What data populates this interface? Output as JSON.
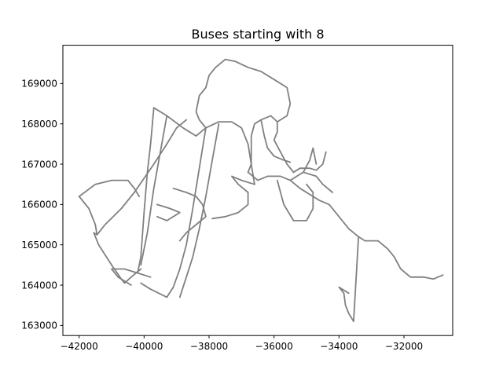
{
  "chart_data": {
    "type": "line",
    "title": "Buses starting with 8",
    "xlabel": "",
    "ylabel": "",
    "xlim": [
      -42500,
      -30500
    ],
    "ylim": [
      162750,
      169950
    ],
    "xticks": [
      -42000,
      -40000,
      -38000,
      -36000,
      -34000,
      -32000
    ],
    "yticks": [
      163000,
      164000,
      165000,
      166000,
      167000,
      168000,
      169000
    ],
    "xtick_labels": [
      "−42000",
      "−40000",
      "−38000",
      "−36000",
      "−34000",
      "−32000"
    ],
    "ytick_labels": [
      "163000",
      "164000",
      "165000",
      "166000",
      "167000",
      "168000",
      "169000"
    ],
    "grid": false,
    "legend": "none",
    "colors": {
      "route": "#808080",
      "axes": "#000000"
    },
    "series": [
      {
        "values": [
          [
            -42000,
            166200
          ],
          [
            -41500,
            166500
          ],
          [
            -41000,
            166600
          ],
          [
            -40500,
            166600
          ],
          [
            -40300,
            166400
          ],
          [
            -40150,
            166200
          ]
        ]
      },
      {
        "values": [
          [
            -42000,
            166200
          ],
          [
            -41700,
            165900
          ],
          [
            -41500,
            165500
          ],
          [
            -41450,
            165250
          ],
          [
            -41550,
            165300
          ],
          [
            -41400,
            165000
          ],
          [
            -41000,
            164500
          ],
          [
            -40700,
            164150
          ],
          [
            -40600,
            164050
          ],
          [
            -40400,
            164200
          ],
          [
            -40100,
            164400
          ]
        ]
      },
      {
        "values": [
          [
            -41450,
            165250
          ],
          [
            -41200,
            165500
          ],
          [
            -40700,
            165900
          ],
          [
            -40300,
            166300
          ],
          [
            -40000,
            166650
          ],
          [
            -39700,
            167000
          ],
          [
            -39300,
            167500
          ],
          [
            -39000,
            167900
          ],
          [
            -38700,
            168100
          ]
        ]
      },
      {
        "values": [
          [
            -39700,
            168400
          ],
          [
            -39300,
            168200
          ],
          [
            -38800,
            167900
          ],
          [
            -38400,
            167700
          ],
          [
            -38100,
            167900
          ],
          [
            -37700,
            168050
          ],
          [
            -37300,
            168050
          ],
          [
            -37000,
            167900
          ],
          [
            -36800,
            167500
          ],
          [
            -36700,
            167000
          ],
          [
            -36800,
            166800
          ]
        ]
      },
      {
        "values": [
          [
            -39700,
            168400
          ],
          [
            -39800,
            167500
          ],
          [
            -39900,
            166800
          ],
          [
            -40000,
            165800
          ],
          [
            -40100,
            164700
          ],
          [
            -40200,
            164300
          ]
        ]
      },
      {
        "values": [
          [
            -39300,
            168200
          ],
          [
            -39500,
            167300
          ],
          [
            -39700,
            166400
          ],
          [
            -39900,
            165300
          ],
          [
            -40100,
            164500
          ]
        ]
      },
      {
        "values": [
          [
            -38100,
            167900
          ],
          [
            -38300,
            166900
          ],
          [
            -38500,
            165900
          ],
          [
            -38700,
            165000
          ],
          [
            -38900,
            164400
          ],
          [
            -39100,
            163950
          ],
          [
            -39300,
            163700
          ],
          [
            -39800,
            163900
          ],
          [
            -40100,
            164050
          ]
        ]
      },
      {
        "values": [
          [
            -37700,
            168000
          ],
          [
            -37900,
            167100
          ],
          [
            -38100,
            166200
          ],
          [
            -38300,
            165400
          ],
          [
            -38500,
            164700
          ],
          [
            -38700,
            164200
          ],
          [
            -38900,
            163700
          ]
        ]
      },
      {
        "values": [
          [
            -39600,
            166000
          ],
          [
            -39200,
            165900
          ],
          [
            -38900,
            165800
          ],
          [
            -39300,
            165600
          ],
          [
            -39600,
            165700
          ]
        ]
      },
      {
        "values": [
          [
            -39100,
            166400
          ],
          [
            -38700,
            166300
          ],
          [
            -38400,
            166200
          ],
          [
            -38200,
            166000
          ],
          [
            -38100,
            165700
          ],
          [
            -38400,
            165500
          ],
          [
            -38700,
            165300
          ],
          [
            -38900,
            165100
          ]
        ]
      },
      {
        "values": [
          [
            -40400,
            164000
          ],
          [
            -40800,
            164200
          ],
          [
            -41000,
            164400
          ],
          [
            -40600,
            164400
          ],
          [
            -40200,
            164300
          ],
          [
            -39800,
            164200
          ]
        ]
      },
      {
        "values": [
          [
            -37900,
            165650
          ],
          [
            -37500,
            165700
          ],
          [
            -37100,
            165800
          ],
          [
            -36800,
            166000
          ],
          [
            -36800,
            166300
          ],
          [
            -37100,
            166500
          ],
          [
            -37300,
            166700
          ],
          [
            -37000,
            166600
          ],
          [
            -36600,
            166500
          ]
        ]
      },
      {
        "values": [
          [
            -36600,
            166500
          ],
          [
            -36700,
            167000
          ],
          [
            -36700,
            167700
          ],
          [
            -36600,
            168000
          ],
          [
            -36400,
            168100
          ],
          [
            -36100,
            168200
          ],
          [
            -35900,
            168050
          ],
          [
            -35900,
            167800
          ],
          [
            -36000,
            167600
          ],
          [
            -35800,
            167300
          ],
          [
            -35600,
            167000
          ],
          [
            -35400,
            166800
          ]
        ]
      },
      {
        "values": [
          [
            -35900,
            168050
          ],
          [
            -35600,
            168200
          ],
          [
            -35500,
            168500
          ],
          [
            -35600,
            168900
          ],
          [
            -36000,
            169100
          ],
          [
            -36400,
            169300
          ],
          [
            -36800,
            169400
          ],
          [
            -37200,
            169550
          ],
          [
            -37500,
            169600
          ],
          [
            -37800,
            169400
          ],
          [
            -38000,
            169200
          ],
          [
            -38100,
            168900
          ]
        ]
      },
      {
        "values": [
          [
            -38100,
            168900
          ],
          [
            -38300,
            168700
          ],
          [
            -38400,
            168300
          ],
          [
            -38300,
            168100
          ],
          [
            -38100,
            167900
          ]
        ]
      },
      {
        "values": [
          [
            -36400,
            168100
          ],
          [
            -36300,
            167700
          ],
          [
            -36200,
            167400
          ],
          [
            -36000,
            167200
          ],
          [
            -35700,
            167100
          ],
          [
            -35500,
            167050
          ]
        ]
      },
      {
        "values": [
          [
            -36800,
            166800
          ],
          [
            -36500,
            166600
          ],
          [
            -36200,
            166700
          ],
          [
            -35800,
            166700
          ],
          [
            -35500,
            166600
          ],
          [
            -35200,
            166400
          ],
          [
            -34800,
            166200
          ],
          [
            -34600,
            166100
          ],
          [
            -34300,
            166000
          ],
          [
            -34000,
            165700
          ],
          [
            -33700,
            165400
          ],
          [
            -33400,
            165200
          ],
          [
            -33200,
            165100
          ],
          [
            -32800,
            165100
          ],
          [
            -32500,
            164900
          ],
          [
            -32300,
            164700
          ],
          [
            -32100,
            164400
          ],
          [
            -31800,
            164200
          ],
          [
            -31400,
            164200
          ],
          [
            -31100,
            164150
          ],
          [
            -30800,
            164250
          ]
        ]
      },
      {
        "values": [
          [
            -35900,
            166600
          ],
          [
            -35700,
            166000
          ],
          [
            -35400,
            165600
          ],
          [
            -35000,
            165600
          ],
          [
            -34800,
            165900
          ],
          [
            -34800,
            166300
          ],
          [
            -35000,
            166500
          ]
        ]
      },
      {
        "values": [
          [
            -35500,
            166600
          ],
          [
            -35100,
            166800
          ],
          [
            -34700,
            166700
          ],
          [
            -34500,
            166500
          ],
          [
            -34200,
            166300
          ]
        ]
      },
      {
        "values": [
          [
            -35400,
            166800
          ],
          [
            -35200,
            166900
          ],
          [
            -34900,
            166900
          ],
          [
            -34700,
            166850
          ],
          [
            -34500,
            167000
          ],
          [
            -34400,
            167300
          ]
        ]
      },
      {
        "values": [
          [
            -35100,
            166800
          ],
          [
            -34900,
            167100
          ],
          [
            -34800,
            167400
          ],
          [
            -34700,
            167000
          ]
        ]
      },
      {
        "values": [
          [
            -33400,
            165200
          ],
          [
            -33450,
            164500
          ],
          [
            -33500,
            163800
          ],
          [
            -33550,
            163100
          ]
        ]
      },
      {
        "values": [
          [
            -33550,
            163100
          ],
          [
            -33700,
            163300
          ],
          [
            -33800,
            163500
          ],
          [
            -33850,
            163800
          ],
          [
            -34000,
            163950
          ],
          [
            -33700,
            163800
          ]
        ]
      }
    ]
  }
}
